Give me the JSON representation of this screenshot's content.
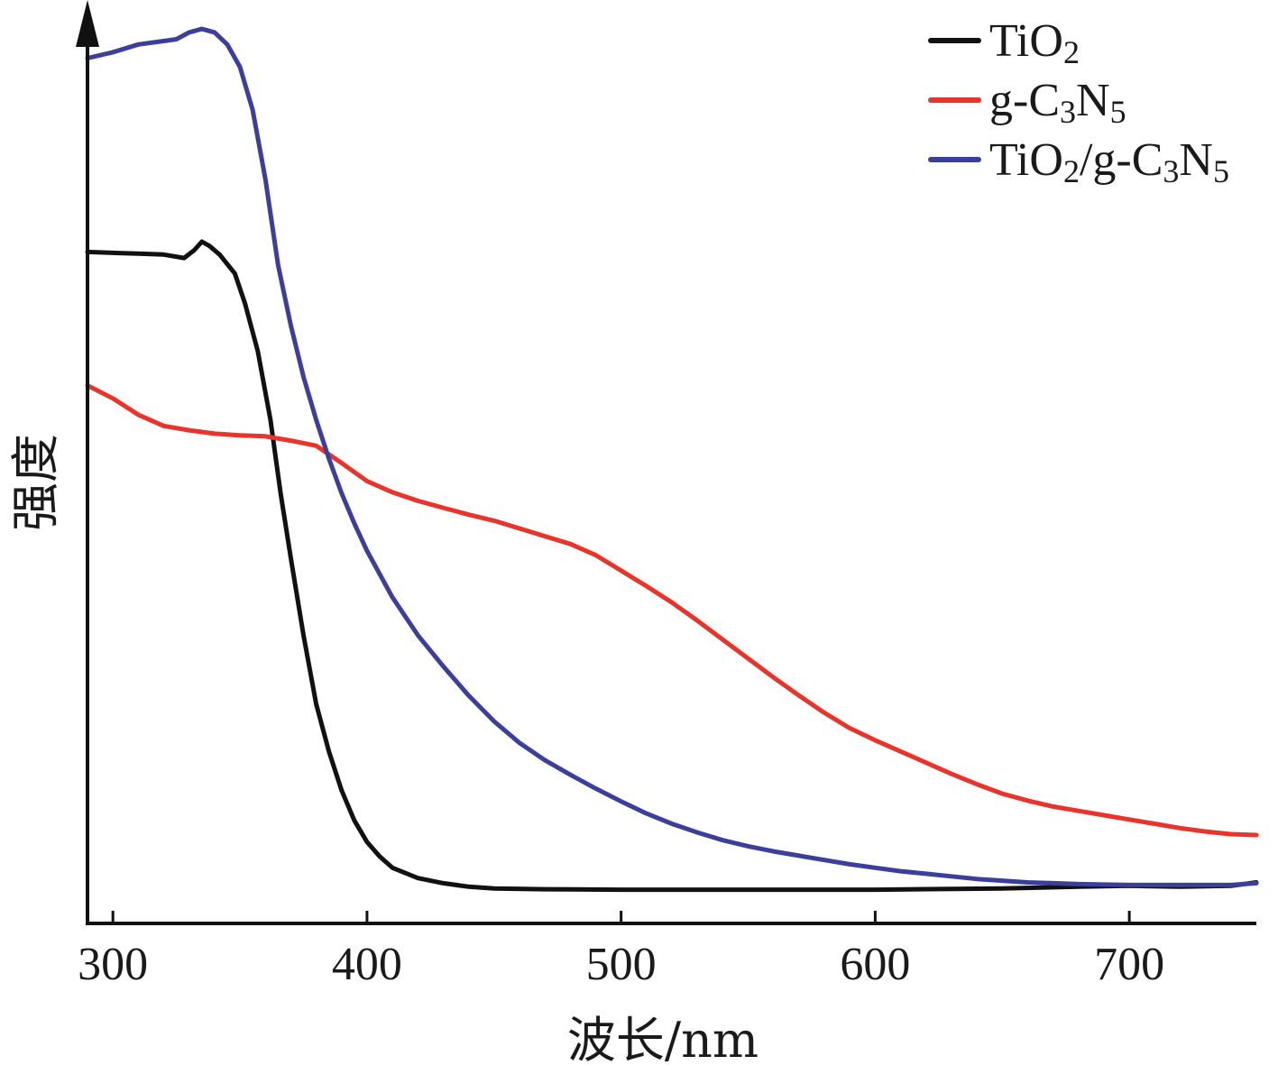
{
  "chart_data": {
    "type": "line",
    "title": "",
    "xlabel": "波长/nm",
    "ylabel": "强度",
    "xlim": [
      290,
      750
    ],
    "ylim": [
      0,
      100
    ],
    "x_ticks": [
      300,
      400,
      500,
      600,
      700
    ],
    "legend_position": "top-right",
    "series": [
      {
        "name": "TiO2",
        "name_parts": [
          {
            "text": "TiO",
            "sub": false
          },
          {
            "text": "2",
            "sub": true
          }
        ],
        "color": "#111111",
        "points": [
          [
            290,
            76.5
          ],
          [
            300,
            76.4
          ],
          [
            310,
            76.3
          ],
          [
            320,
            76.2
          ],
          [
            328,
            75.8
          ],
          [
            332,
            76.7
          ],
          [
            335,
            77.7
          ],
          [
            338,
            77.2
          ],
          [
            342,
            76.2
          ],
          [
            348,
            74.0
          ],
          [
            352,
            70.5
          ],
          [
            357,
            65.0
          ],
          [
            362,
            57.0
          ],
          [
            366,
            48.5
          ],
          [
            370,
            41.0
          ],
          [
            375,
            32.0
          ],
          [
            380,
            24.0
          ],
          [
            385,
            18.5
          ],
          [
            390,
            14.0
          ],
          [
            395,
            10.5
          ],
          [
            400,
            8.0
          ],
          [
            405,
            6.3
          ],
          [
            410,
            5.0
          ],
          [
            420,
            3.8
          ],
          [
            430,
            3.2
          ],
          [
            440,
            2.8
          ],
          [
            450,
            2.6
          ],
          [
            470,
            2.5
          ],
          [
            500,
            2.45
          ],
          [
            550,
            2.45
          ],
          [
            600,
            2.45
          ],
          [
            650,
            2.6
          ],
          [
            680,
            2.8
          ],
          [
            700,
            2.9
          ],
          [
            720,
            2.8
          ],
          [
            740,
            2.9
          ],
          [
            750,
            3.3
          ]
        ]
      },
      {
        "name": "g-C3N5",
        "name_parts": [
          {
            "text": "g-C",
            "sub": false
          },
          {
            "text": "3",
            "sub": true
          },
          {
            "text": "N",
            "sub": false
          },
          {
            "text": "5",
            "sub": true
          }
        ],
        "color": "#e8342a",
        "points": [
          [
            290,
            61.0
          ],
          [
            300,
            59.5
          ],
          [
            310,
            57.6
          ],
          [
            320,
            56.3
          ],
          [
            330,
            55.8
          ],
          [
            340,
            55.4
          ],
          [
            350,
            55.2
          ],
          [
            360,
            55.1
          ],
          [
            370,
            54.6
          ],
          [
            380,
            54.0
          ],
          [
            390,
            52.0
          ],
          [
            400,
            49.9
          ],
          [
            410,
            48.6
          ],
          [
            420,
            47.6
          ],
          [
            430,
            46.8
          ],
          [
            440,
            46.0
          ],
          [
            450,
            45.3
          ],
          [
            460,
            44.4
          ],
          [
            470,
            43.5
          ],
          [
            480,
            42.6
          ],
          [
            490,
            41.3
          ],
          [
            500,
            39.5
          ],
          [
            510,
            37.7
          ],
          [
            520,
            35.8
          ],
          [
            530,
            33.7
          ],
          [
            540,
            31.5
          ],
          [
            550,
            29.3
          ],
          [
            560,
            27.1
          ],
          [
            570,
            25.0
          ],
          [
            580,
            23.0
          ],
          [
            590,
            21.2
          ],
          [
            600,
            19.8
          ],
          [
            610,
            18.5
          ],
          [
            620,
            17.2
          ],
          [
            630,
            15.9
          ],
          [
            640,
            14.7
          ],
          [
            650,
            13.6
          ],
          [
            660,
            12.8
          ],
          [
            670,
            12.1
          ],
          [
            680,
            11.6
          ],
          [
            690,
            11.1
          ],
          [
            700,
            10.6
          ],
          [
            710,
            10.1
          ],
          [
            720,
            9.6
          ],
          [
            730,
            9.2
          ],
          [
            740,
            8.9
          ],
          [
            750,
            8.8
          ]
        ]
      },
      {
        "name": "TiO2/g-C3N5",
        "name_parts": [
          {
            "text": "TiO",
            "sub": false
          },
          {
            "text": "2",
            "sub": true
          },
          {
            "text": "/g-C",
            "sub": false
          },
          {
            "text": "3",
            "sub": true
          },
          {
            "text": "N",
            "sub": false
          },
          {
            "text": "5",
            "sub": true
          }
        ],
        "color": "#3b3e9a",
        "points": [
          [
            290,
            99.0
          ],
          [
            300,
            99.7
          ],
          [
            310,
            100.6
          ],
          [
            320,
            101.0
          ],
          [
            325,
            101.2
          ],
          [
            330,
            102.0
          ],
          [
            335,
            102.4
          ],
          [
            340,
            102.0
          ],
          [
            345,
            100.6
          ],
          [
            350,
            98.0
          ],
          [
            355,
            93.0
          ],
          [
            360,
            85.0
          ],
          [
            365,
            75.0
          ],
          [
            370,
            68.0
          ],
          [
            375,
            62.0
          ],
          [
            380,
            57.0
          ],
          [
            385,
            52.5
          ],
          [
            390,
            48.5
          ],
          [
            395,
            45.0
          ],
          [
            400,
            41.8
          ],
          [
            410,
            36.4
          ],
          [
            420,
            32.0
          ],
          [
            430,
            28.4
          ],
          [
            440,
            25.0
          ],
          [
            450,
            22.0
          ],
          [
            460,
            19.5
          ],
          [
            470,
            17.5
          ],
          [
            480,
            15.8
          ],
          [
            490,
            14.2
          ],
          [
            500,
            12.7
          ],
          [
            510,
            11.3
          ],
          [
            520,
            10.1
          ],
          [
            530,
            9.1
          ],
          [
            540,
            8.2
          ],
          [
            550,
            7.5
          ],
          [
            560,
            6.9
          ],
          [
            570,
            6.4
          ],
          [
            580,
            5.9
          ],
          [
            590,
            5.4
          ],
          [
            600,
            5.0
          ],
          [
            610,
            4.6
          ],
          [
            620,
            4.3
          ],
          [
            630,
            4.0
          ],
          [
            640,
            3.7
          ],
          [
            650,
            3.5
          ],
          [
            660,
            3.3
          ],
          [
            670,
            3.2
          ],
          [
            680,
            3.1
          ],
          [
            700,
            3.0
          ],
          [
            720,
            3.0
          ],
          [
            740,
            3.0
          ],
          [
            750,
            3.2
          ]
        ]
      }
    ]
  }
}
